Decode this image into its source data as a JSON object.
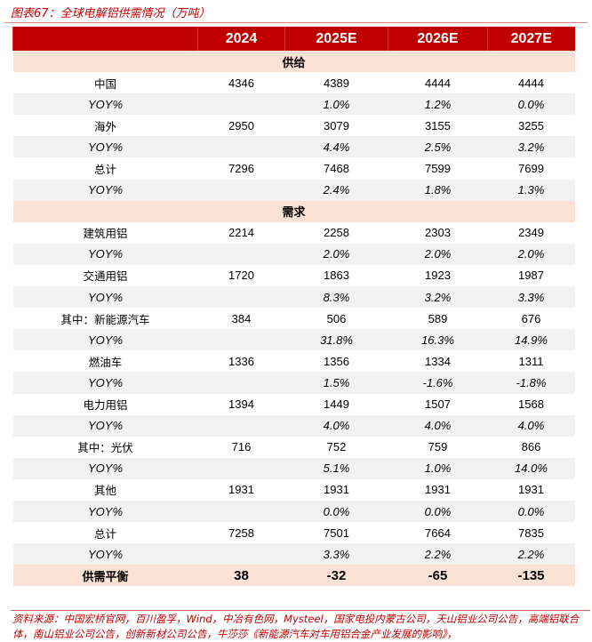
{
  "title": "图表67：全球电解铝供需情况（万吨）",
  "columns": [
    "",
    "2024",
    "2025E",
    "2026E",
    "2027E"
  ],
  "rows": [
    {
      "type": "sec",
      "label": "供给"
    },
    {
      "label": "中国",
      "v": [
        "4346",
        "4389",
        "4444",
        "4444"
      ]
    },
    {
      "label": "YOY%",
      "yoy": true,
      "v": [
        "",
        "1.0%",
        "1.2%",
        "0.0%"
      ]
    },
    {
      "label": "海外",
      "v": [
        "2950",
        "3079",
        "3155",
        "3255"
      ]
    },
    {
      "label": "YOY%",
      "yoy": true,
      "v": [
        "",
        "4.4%",
        "2.5%",
        "3.2%"
      ]
    },
    {
      "label": "总计",
      "v": [
        "7296",
        "7468",
        "7599",
        "7699"
      ]
    },
    {
      "label": "YOY%",
      "yoy": true,
      "v": [
        "",
        "2.4%",
        "1.8%",
        "1.3%"
      ]
    },
    {
      "type": "sec",
      "label": "需求"
    },
    {
      "label": "建筑用铝",
      "v": [
        "2214",
        "2258",
        "2303",
        "2349"
      ]
    },
    {
      "label": "YOY%",
      "yoy": true,
      "v": [
        "",
        "2.0%",
        "2.0%",
        "2.0%"
      ]
    },
    {
      "label": "交通用铝",
      "v": [
        "1720",
        "1863",
        "1923",
        "1987"
      ]
    },
    {
      "label": "YOY%",
      "yoy": true,
      "v": [
        "",
        "8.3%",
        "3.2%",
        "3.3%"
      ]
    },
    {
      "label": "其中：新能源汽车",
      "v": [
        "384",
        "506",
        "589",
        "676"
      ]
    },
    {
      "label": "YOY%",
      "yoy": true,
      "v": [
        "",
        "31.8%",
        "16.3%",
        "14.9%"
      ]
    },
    {
      "label": "燃油车",
      "v": [
        "1336",
        "1356",
        "1334",
        "1311"
      ]
    },
    {
      "label": "YOY%",
      "yoy": true,
      "v": [
        "",
        "1.5%",
        "-1.6%",
        "-1.8%"
      ]
    },
    {
      "label": "电力用铝",
      "v": [
        "1394",
        "1449",
        "1507",
        "1568"
      ]
    },
    {
      "label": "YOY%",
      "yoy": true,
      "v": [
        "",
        "4.0%",
        "4.0%",
        "4.0%"
      ]
    },
    {
      "label": "其中：光伏",
      "v": [
        "716",
        "752",
        "759",
        "866"
      ]
    },
    {
      "label": "YOY%",
      "yoy": true,
      "v": [
        "",
        "5.1%",
        "1.0%",
        "14.0%"
      ]
    },
    {
      "label": "其他",
      "v": [
        "1931",
        "1931",
        "1931",
        "1931"
      ]
    },
    {
      "label": "YOY%",
      "yoy": true,
      "v": [
        "",
        "0.0%",
        "0.0%",
        "0.0%"
      ]
    },
    {
      "label": "总计",
      "v": [
        "7258",
        "7501",
        "7664",
        "7835"
      ]
    },
    {
      "label": "YOY%",
      "yoy": true,
      "v": [
        "",
        "3.3%",
        "2.2%",
        "2.2%"
      ]
    },
    {
      "type": "bal",
      "label": "供需平衡",
      "v": [
        "38",
        "-32",
        "-65",
        "-135"
      ]
    }
  ],
  "source": "资料来源：中国宏桥官网，百川盈孚，Wind，中冶有色网，Mysteel，国家电投内蒙古公司，天山铝业公司公告，高端铝联合体，南山铝业公司公告，创新新材公司公告，牛莎莎《新能源汽车对车用铝合金产业发展的影响》，"
}
